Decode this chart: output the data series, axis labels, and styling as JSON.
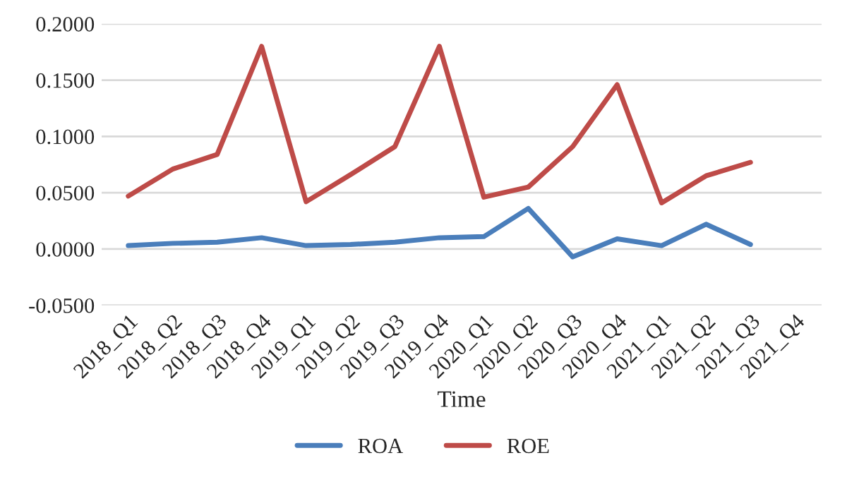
{
  "chart_data": {
    "type": "line",
    "xlabel": "Time",
    "categories": [
      "2018_Q1",
      "2018_Q2",
      "2018_Q3",
      "2018_Q4",
      "2019_Q1",
      "2019_Q2",
      "2019_Q3",
      "2019_Q4",
      "2020_Q1",
      "2020_Q2",
      "2020_Q3",
      "2020_Q4",
      "2021_Q1",
      "2021_Q2",
      "2021_Q3",
      "2021_Q4"
    ],
    "series": [
      {
        "name": "ROA",
        "color": "#4a7ebb",
        "values": [
          0.003,
          0.005,
          0.006,
          0.01,
          0.003,
          0.004,
          0.006,
          0.01,
          0.011,
          0.036,
          -0.007,
          0.009,
          0.003,
          0.022,
          0.004,
          null
        ]
      },
      {
        "name": "ROE",
        "color": "#be4b48",
        "values": [
          0.047,
          0.071,
          0.084,
          0.18,
          0.042,
          0.066,
          0.091,
          0.18,
          0.046,
          0.055,
          0.091,
          0.146,
          0.041,
          0.065,
          0.077,
          null
        ]
      }
    ],
    "ylim": [
      -0.05,
      0.2
    ],
    "yticks": [
      {
        "value": -0.05,
        "label": "-0.0500"
      },
      {
        "value": 0,
        "label": "0.0000"
      },
      {
        "value": 0.05,
        "label": "0.0500"
      },
      {
        "value": 0.1,
        "label": "0.1000"
      },
      {
        "value": 0.15,
        "label": "0.1500"
      },
      {
        "value": 0.2,
        "label": "0.2000"
      }
    ],
    "grid": "y",
    "legend": "bottom",
    "marker": "none",
    "line_style": "solid"
  }
}
